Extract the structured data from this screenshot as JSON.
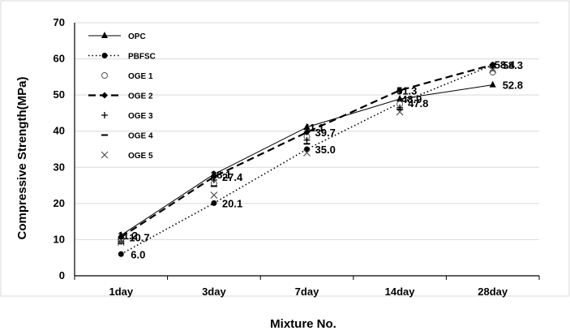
{
  "chart_data": {
    "type": "line",
    "title": "",
    "xlabel": "Mixture No.",
    "ylabel": "Compressive Strength(MPa)",
    "categories": [
      "1day",
      "3day",
      "7day",
      "14day",
      "28day"
    ],
    "ylim": [
      0,
      70
    ],
    "yticks": [
      "0",
      "10",
      "20",
      "30",
      "40",
      "50",
      "60",
      "70"
    ],
    "grid": "horizontal",
    "legend_position": "top-left",
    "series": [
      {
        "name": "OPC",
        "values": [
          11.2,
          28.1,
          41.1,
          48.9,
          52.8
        ],
        "marker": "triangle",
        "line": "solid",
        "color": "#000000"
      },
      {
        "name": "PBFSC",
        "values": [
          6.0,
          20.1,
          35.0,
          47.8,
          58.3
        ],
        "marker": "dot",
        "line": "dotted",
        "color": "#000000"
      },
      {
        "name": "OGE 1",
        "values": [
          10.0,
          25.5,
          38.5,
          47.5,
          56.3
        ],
        "marker": "circle-open",
        "line": "none",
        "color": "#555555"
      },
      {
        "name": "OGE 2",
        "values": [
          10.7,
          27.4,
          39.7,
          51.3,
          58.4
        ],
        "marker": "diamond",
        "line": "dashed",
        "color": "#000000"
      },
      {
        "name": "OGE 3",
        "values": [
          9.5,
          26.5,
          37.5,
          46.5,
          57.5
        ],
        "marker": "plus",
        "line": "none",
        "color": "#000000"
      },
      {
        "name": "OGE 4",
        "values": [
          9.0,
          24.8,
          36.5,
          46.0,
          57.8
        ],
        "marker": "dash",
        "line": "none",
        "color": "#000000"
      },
      {
        "name": "OGE 5",
        "values": [
          9.3,
          22.3,
          34.0,
          45.3,
          57.0
        ],
        "marker": "x",
        "line": "none",
        "color": "#555555"
      }
    ],
    "annotations": [
      {
        "text": "11.2",
        "category": 0,
        "value": 11.2,
        "dx": -4,
        "dy": 0
      },
      {
        "text": "10.7",
        "category": 0,
        "value": 10.7,
        "dx": 10,
        "dy": 0
      },
      {
        "text": "6.0",
        "category": 0,
        "value": 6.0,
        "dx": 12,
        "dy": 0
      },
      {
        "text": "28.1",
        "category": 1,
        "value": 28.1,
        "dx": -4,
        "dy": 0
      },
      {
        "text": "27.4",
        "category": 1,
        "value": 27.4,
        "dx": 10,
        "dy": 0
      },
      {
        "text": "20.1",
        "category": 1,
        "value": 20.1,
        "dx": 10,
        "dy": 0
      },
      {
        "text": "41.1",
        "category": 2,
        "value": 41.1,
        "dx": -4,
        "dy": 0
      },
      {
        "text": "39.7",
        "category": 2,
        "value": 39.7,
        "dx": 10,
        "dy": 0
      },
      {
        "text": "35.0",
        "category": 2,
        "value": 35.0,
        "dx": 10,
        "dy": 0
      },
      {
        "text": "51.3",
        "category": 3,
        "value": 51.3,
        "dx": -4,
        "dy": 0
      },
      {
        "text": "48.9",
        "category": 3,
        "value": 48.9,
        "dx": 2,
        "dy": 0
      },
      {
        "text": "47.8",
        "category": 3,
        "value": 47.8,
        "dx": 10,
        "dy": 0
      },
      {
        "text": "58.4",
        "category": 4,
        "value": 58.4,
        "dx": 2,
        "dy": 0
      },
      {
        "text": "58.3",
        "category": 4,
        "value": 58.3,
        "dx": 12,
        "dy": 0
      },
      {
        "text": "52.8",
        "category": 4,
        "value": 52.8,
        "dx": 12,
        "dy": 0
      }
    ]
  }
}
